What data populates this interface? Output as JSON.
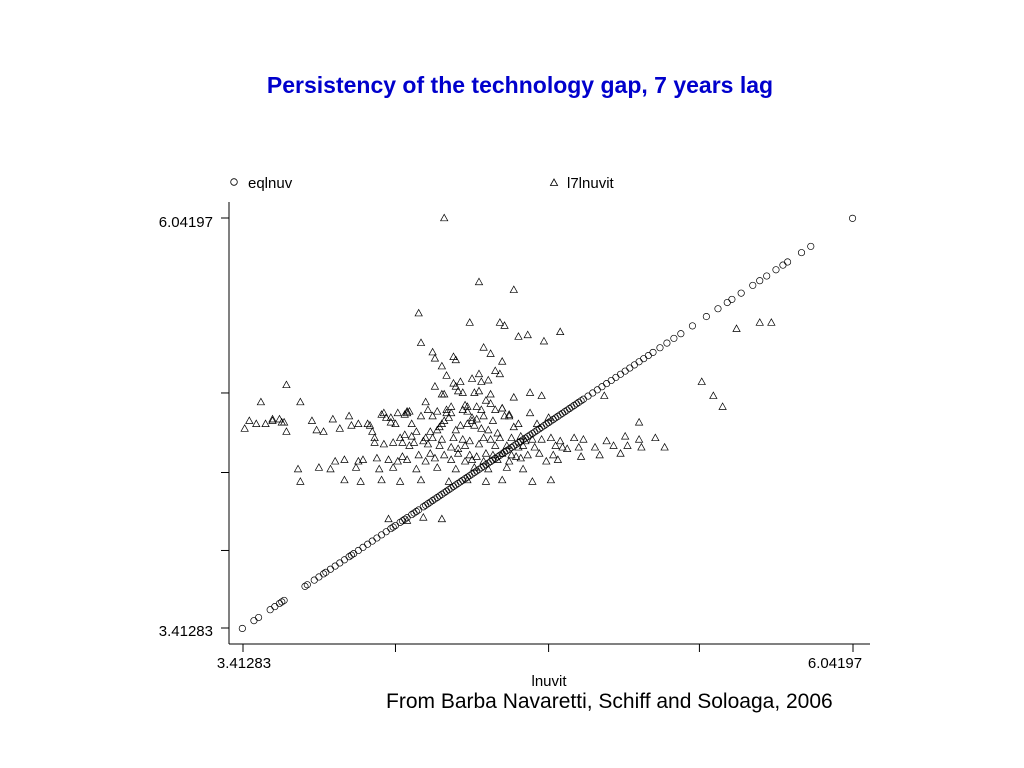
{
  "slide": {
    "title": "Persistency of the technology gap, 7 years lag",
    "title_color": "#0000CC",
    "caption": "From Barba Navaretti, Schiff and Soloaga, 2006"
  },
  "chart_data": {
    "type": "scatter",
    "title": "",
    "xlabel": "lnuvit",
    "ylabel": "",
    "xlim": [
      3.41283,
      6.04197
    ],
    "ylim": [
      3.41283,
      6.04197
    ],
    "x_tick_labels": [
      "3.41283",
      "6.04197"
    ],
    "y_tick_labels": [
      "6.04197",
      "3.41283"
    ],
    "x_tick_values": [
      3.41283,
      4.07,
      4.73,
      5.38,
      6.04197
    ],
    "y_tick_values": [
      3.41283,
      3.91,
      4.41,
      4.92,
      6.04197
    ],
    "grid": false,
    "legend_placement": "top",
    "series": [
      {
        "name": "eqlnuv",
        "marker": "circle",
        "x": [
          3.41,
          3.46,
          3.48,
          3.53,
          3.55,
          3.57,
          3.58,
          3.59,
          3.68,
          3.69,
          3.72,
          3.74,
          3.76,
          3.77,
          3.79,
          3.81,
          3.83,
          3.85,
          3.87,
          3.88,
          3.89,
          3.91,
          3.93,
          3.95,
          3.97,
          3.99,
          4.01,
          4.03,
          4.05,
          4.06,
          4.07,
          4.09,
          4.1,
          4.11,
          4.12,
          4.14,
          4.15,
          4.16,
          4.17,
          4.19,
          4.2,
          4.21,
          4.22,
          4.23,
          4.24,
          4.25,
          4.26,
          4.27,
          4.28,
          4.29,
          4.3,
          4.31,
          4.32,
          4.33,
          4.34,
          4.35,
          4.36,
          4.37,
          4.38,
          4.39,
          4.4,
          4.41,
          4.42,
          4.43,
          4.44,
          4.45,
          4.46,
          4.47,
          4.48,
          4.49,
          4.5,
          4.51,
          4.52,
          4.53,
          4.54,
          4.55,
          4.56,
          4.57,
          4.58,
          4.59,
          4.6,
          4.61,
          4.62,
          4.63,
          4.64,
          4.65,
          4.66,
          4.67,
          4.68,
          4.69,
          4.7,
          4.71,
          4.72,
          4.73,
          4.74,
          4.75,
          4.76,
          4.77,
          4.78,
          4.79,
          4.8,
          4.81,
          4.82,
          4.83,
          4.84,
          4.85,
          4.86,
          4.87,
          4.88,
          4.9,
          4.92,
          4.94,
          4.96,
          4.98,
          5.0,
          5.02,
          5.04,
          5.06,
          5.08,
          5.1,
          5.12,
          5.14,
          5.16,
          5.18,
          5.21,
          5.24,
          5.27,
          5.3,
          5.35,
          5.41,
          5.46,
          5.5,
          5.52,
          5.56,
          5.61,
          5.64,
          5.67,
          5.71,
          5.74,
          5.76,
          5.82,
          5.86,
          6.04
        ],
        "y": [
          3.41,
          3.46,
          3.48,
          3.53,
          3.55,
          3.57,
          3.58,
          3.59,
          3.68,
          3.69,
          3.72,
          3.74,
          3.76,
          3.77,
          3.79,
          3.81,
          3.83,
          3.85,
          3.87,
          3.88,
          3.89,
          3.91,
          3.93,
          3.95,
          3.97,
          3.99,
          4.01,
          4.03,
          4.05,
          4.06,
          4.07,
          4.09,
          4.1,
          4.11,
          4.12,
          4.14,
          4.15,
          4.16,
          4.17,
          4.19,
          4.2,
          4.21,
          4.22,
          4.23,
          4.24,
          4.25,
          4.26,
          4.27,
          4.28,
          4.29,
          4.3,
          4.31,
          4.32,
          4.33,
          4.34,
          4.35,
          4.36,
          4.37,
          4.38,
          4.39,
          4.4,
          4.41,
          4.42,
          4.43,
          4.44,
          4.45,
          4.46,
          4.47,
          4.48,
          4.49,
          4.5,
          4.51,
          4.52,
          4.53,
          4.54,
          4.55,
          4.56,
          4.57,
          4.58,
          4.59,
          4.6,
          4.61,
          4.62,
          4.63,
          4.64,
          4.65,
          4.66,
          4.67,
          4.68,
          4.69,
          4.7,
          4.71,
          4.72,
          4.73,
          4.74,
          4.75,
          4.76,
          4.77,
          4.78,
          4.79,
          4.8,
          4.81,
          4.82,
          4.83,
          4.84,
          4.85,
          4.86,
          4.87,
          4.88,
          4.9,
          4.92,
          4.94,
          4.96,
          4.98,
          5.0,
          5.02,
          5.04,
          5.06,
          5.08,
          5.1,
          5.12,
          5.14,
          5.16,
          5.18,
          5.21,
          5.24,
          5.27,
          5.3,
          5.35,
          5.41,
          5.46,
          5.5,
          5.52,
          5.56,
          5.61,
          5.64,
          5.67,
          5.71,
          5.74,
          5.76,
          5.82,
          5.86,
          6.04
        ]
      },
      {
        "name": "l7lnuvit",
        "marker": "triangle",
        "x": [
          4.28,
          4.43,
          4.58,
          4.17,
          4.39,
          4.52,
          4.6,
          4.18,
          4.45,
          4.54,
          4.64,
          4.71,
          4.78,
          4.23,
          4.24,
          4.32,
          4.33,
          4.48,
          4.53,
          5.54,
          5.64,
          5.69,
          4.27,
          4.29,
          4.43,
          4.5,
          4.52,
          4.35,
          4.4,
          4.44,
          4.47,
          4.32,
          4.24,
          4.33,
          3.44,
          3.6,
          3.66,
          3.59,
          4.41,
          4.43,
          4.27,
          4.28,
          4.34,
          4.36,
          4.48,
          4.2,
          4.46,
          4.48,
          4.58,
          4.65,
          4.31,
          4.37,
          4.38,
          4.42,
          4.25,
          4.29,
          4.12,
          4.13,
          4.21,
          4.36,
          4.53,
          3.49,
          3.51,
          3.54,
          3.57,
          3.58,
          4.4,
          4.42,
          4.54,
          4.56,
          3.8,
          3.87,
          3.88,
          4.01,
          4.02,
          4.03,
          4.05,
          4.08,
          4.11,
          4.12,
          4.18,
          4.23,
          4.29,
          4.31,
          4.38,
          4.44,
          4.5,
          4.53,
          4.7,
          5.12,
          3.96,
          4.07,
          4.14,
          3.42,
          3.47,
          3.54,
          3.6,
          3.71,
          3.73,
          3.76,
          3.83,
          3.91,
          3.95,
          3.97,
          3.98,
          4.05,
          4.11,
          4.14,
          4.16,
          4.2,
          4.22,
          4.25,
          4.26,
          4.27,
          4.28,
          4.3,
          4.33,
          4.35,
          4.38,
          4.4,
          4.41,
          4.44,
          4.45,
          4.47,
          4.49,
          4.51,
          4.56,
          4.58,
          4.6,
          4.65,
          4.68,
          4.73,
          5.39,
          5.44,
          3.98,
          4.02,
          4.06,
          4.09,
          4.1,
          4.13,
          4.15,
          4.19,
          4.23,
          4.27,
          4.32,
          4.36,
          4.39,
          4.45,
          4.48,
          4.52,
          4.57,
          4.61,
          4.63,
          4.66,
          4.7,
          4.74,
          4.78,
          4.84,
          4.88,
          4.98,
          5.06,
          5.12,
          5.19,
          5.48,
          4.97,
          4.21,
          4.26,
          4.31,
          4.34,
          4.37,
          4.43,
          4.5,
          4.55,
          4.6,
          4.62,
          4.67,
          4.76,
          4.79,
          4.81,
          4.86,
          4.93,
          5.01,
          5.07,
          5.13,
          5.23,
          4.1,
          4.17,
          4.22,
          4.28,
          4.34,
          4.39,
          4.42,
          4.46,
          4.49,
          4.53,
          4.57,
          4.59,
          4.64,
          4.69,
          4.75,
          4.87,
          4.95,
          5.04,
          3.81,
          3.85,
          3.91,
          3.93,
          3.99,
          4.04,
          4.08,
          4.12,
          4.2,
          4.24,
          4.31,
          4.37,
          4.4,
          4.45,
          4.51,
          4.56,
          4.61,
          4.72,
          4.77,
          3.65,
          3.74,
          3.79,
          3.9,
          4.0,
          4.06,
          4.16,
          4.25,
          4.33,
          4.41,
          4.47,
          4.55,
          4.62,
          3.66,
          3.85,
          3.92,
          4.01,
          4.09,
          4.18,
          4.3,
          4.38,
          4.46,
          4.53,
          4.66,
          4.74,
          4.04,
          4.12,
          4.19,
          4.27
        ],
        "y": [
          6.04,
          5.63,
          5.58,
          5.43,
          5.37,
          5.37,
          5.28,
          5.24,
          5.21,
          5.35,
          5.29,
          5.25,
          5.31,
          5.18,
          5.14,
          5.15,
          5.13,
          5.17,
          5.12,
          5.33,
          5.37,
          5.37,
          5.09,
          5.03,
          5.04,
          5.06,
          5.04,
          4.99,
          5.01,
          4.99,
          5.0,
          4.98,
          4.96,
          4.96,
          4.74,
          4.97,
          4.86,
          4.73,
          4.92,
          4.93,
          4.91,
          4.91,
          4.93,
          4.92,
          4.91,
          4.86,
          4.87,
          4.85,
          4.89,
          4.92,
          4.83,
          4.84,
          4.83,
          4.83,
          4.8,
          4.81,
          4.8,
          4.8,
          4.81,
          4.81,
          4.82,
          4.86,
          4.72,
          4.75,
          4.75,
          4.73,
          4.76,
          4.75,
          4.77,
          4.78,
          4.75,
          4.77,
          4.71,
          4.78,
          4.79,
          4.76,
          4.76,
          4.79,
          4.78,
          4.79,
          4.77,
          4.77,
          4.79,
          4.79,
          4.8,
          4.81,
          4.81,
          4.82,
          4.9,
          4.73,
          4.71,
          4.72,
          4.72,
          4.69,
          4.72,
          4.74,
          4.67,
          4.74,
          4.68,
          4.67,
          4.69,
          4.72,
          4.72,
          4.67,
          4.63,
          4.73,
          4.65,
          4.64,
          4.67,
          4.63,
          4.67,
          4.68,
          4.7,
          4.72,
          4.74,
          4.76,
          4.68,
          4.71,
          4.72,
          4.74,
          4.71,
          4.69,
          4.77,
          4.68,
          4.74,
          4.66,
          4.77,
          4.7,
          4.72,
          4.79,
          4.72,
          4.76,
          4.99,
          4.9,
          4.6,
          4.59,
          4.6,
          4.63,
          4.6,
          4.58,
          4.6,
          4.61,
          4.63,
          4.62,
          4.63,
          4.62,
          4.61,
          4.63,
          4.62,
          4.63,
          4.63,
          4.64,
          4.61,
          4.62,
          4.62,
          4.63,
          4.61,
          4.63,
          4.62,
          4.61,
          4.64,
          4.62,
          4.63,
          4.83,
          4.9,
          4.59,
          4.58,
          4.57,
          4.56,
          4.58,
          4.59,
          4.58,
          4.58,
          4.57,
          4.58,
          4.57,
          4.58,
          4.57,
          4.56,
          4.57,
          4.57,
          4.58,
          4.58,
          4.57,
          4.57,
          4.51,
          4.52,
          4.53,
          4.52,
          4.53,
          4.52,
          4.51,
          4.53,
          4.52,
          4.53,
          4.52,
          4.51,
          4.52,
          4.53,
          4.52,
          4.51,
          4.52,
          4.53,
          4.48,
          4.49,
          4.48,
          4.49,
          4.5,
          4.49,
          4.48,
          4.49,
          4.48,
          4.5,
          4.49,
          4.48,
          4.49,
          4.48,
          4.49,
          4.48,
          4.5,
          4.48,
          4.49,
          4.43,
          4.44,
          4.43,
          4.44,
          4.43,
          4.44,
          4.43,
          4.44,
          4.43,
          4.44,
          4.43,
          4.44,
          4.43,
          4.35,
          4.36,
          4.35,
          4.36,
          4.35,
          4.36,
          4.35,
          4.36,
          4.35,
          4.36,
          4.35,
          4.36,
          4.11,
          4.1,
          4.12,
          4.11
        ]
      }
    ]
  }
}
